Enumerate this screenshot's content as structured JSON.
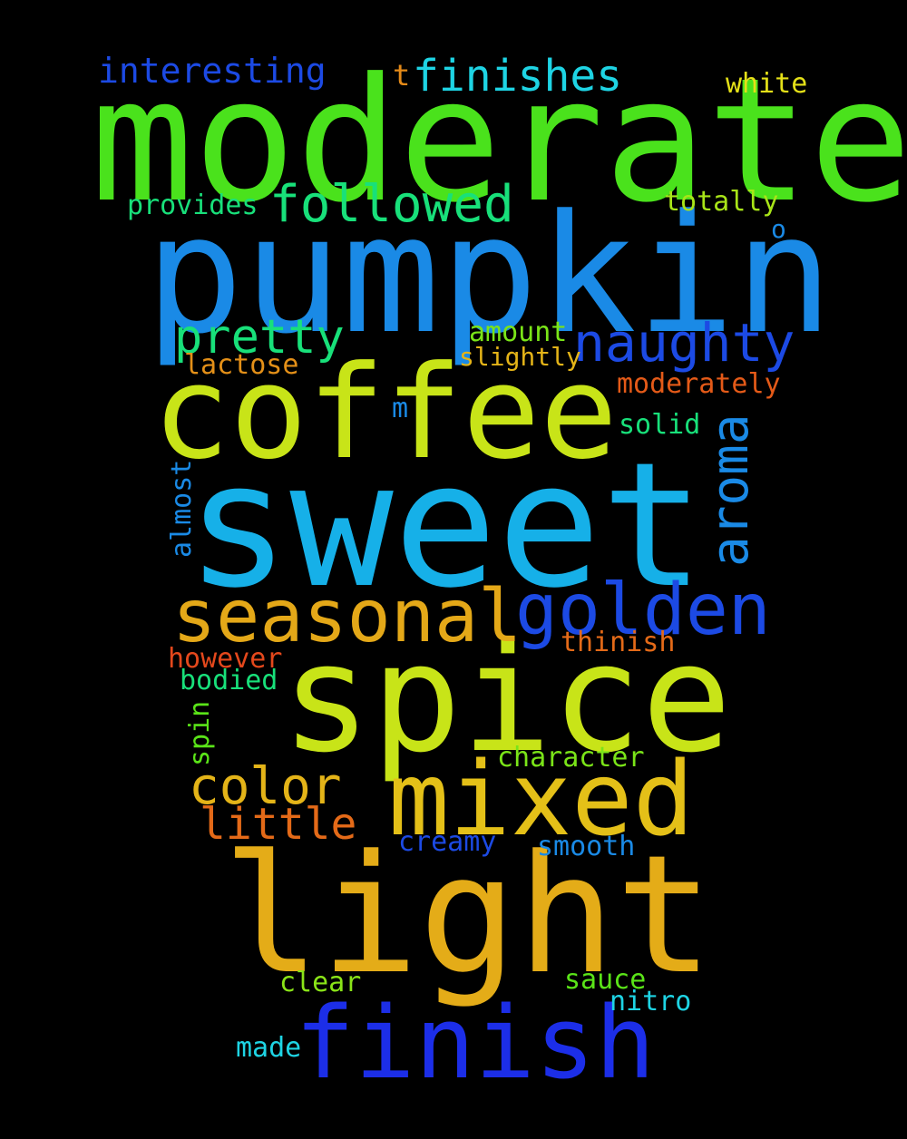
{
  "words": [
    {
      "key": "moderate",
      "text": "moderate",
      "color": "#4ae21c"
    },
    {
      "key": "pumpkin",
      "text": "pumpkin",
      "color": "#1a8ae6"
    },
    {
      "key": "sweet",
      "text": "sweet",
      "color": "#16b0e8"
    },
    {
      "key": "coffee",
      "text": "coffee",
      "color": "#c8e418"
    },
    {
      "key": "spice",
      "text": "spice",
      "color": "#c8e418"
    },
    {
      "key": "light",
      "text": "light",
      "color": "#e4ac18"
    },
    {
      "key": "finish",
      "text": "finish",
      "color": "#1c2ee8"
    },
    {
      "key": "mixed",
      "text": "mixed",
      "color": "#e4c018"
    },
    {
      "key": "seasonal",
      "text": "seasonal",
      "color": "#e4a818"
    },
    {
      "key": "golden",
      "text": "golden",
      "color": "#1c4ae4"
    },
    {
      "key": "naughty",
      "text": "naughty",
      "color": "#1c4ae4"
    },
    {
      "key": "aroma",
      "text": "aroma",
      "color": "#1a8ae6"
    },
    {
      "key": "followed",
      "text": "followed",
      "color": "#18e07a"
    },
    {
      "key": "pretty",
      "text": "pretty",
      "color": "#18e07a"
    },
    {
      "key": "finishes",
      "text": "finishes",
      "color": "#1ed4e4"
    },
    {
      "key": "color",
      "text": "color",
      "color": "#e4b418"
    },
    {
      "key": "little",
      "text": "little",
      "color": "#e46a18"
    },
    {
      "key": "interesting",
      "text": "interesting",
      "color": "#1c4ae4"
    },
    {
      "key": "white",
      "text": "white",
      "color": "#e4e018"
    },
    {
      "key": "t",
      "text": "t",
      "color": "#e48a18"
    },
    {
      "key": "totally",
      "text": "totally",
      "color": "#a8e418"
    },
    {
      "key": "provides",
      "text": "provides",
      "color": "#18e07a"
    },
    {
      "key": "o",
      "text": "o",
      "color": "#1a8ae6"
    },
    {
      "key": "amount",
      "text": "amount",
      "color": "#7ae418"
    },
    {
      "key": "slightly",
      "text": "slightly",
      "color": "#e4b418"
    },
    {
      "key": "lactose",
      "text": "lactose",
      "color": "#e49018"
    },
    {
      "key": "moderately",
      "text": "moderately",
      "color": "#e45a18"
    },
    {
      "key": "m",
      "text": "m",
      "color": "#1a8ae6"
    },
    {
      "key": "solid",
      "text": "solid",
      "color": "#18e07a"
    },
    {
      "key": "almost",
      "text": "almost",
      "color": "#1a8ae6"
    },
    {
      "key": "thinish",
      "text": "thinish",
      "color": "#e46a18"
    },
    {
      "key": "however",
      "text": "however",
      "color": "#e4481c"
    },
    {
      "key": "bodied",
      "text": "bodied",
      "color": "#18e07a"
    },
    {
      "key": "spin",
      "text": "spin",
      "color": "#5ae418"
    },
    {
      "key": "character",
      "text": "character",
      "color": "#7ae418"
    },
    {
      "key": "creamy",
      "text": "creamy",
      "color": "#1c4ae4"
    },
    {
      "key": "smooth",
      "text": "smooth",
      "color": "#1a8ae6"
    },
    {
      "key": "clear",
      "text": "clear",
      "color": "#8ae418"
    },
    {
      "key": "sauce",
      "text": "sauce",
      "color": "#5ae418"
    },
    {
      "key": "nitro",
      "text": "nitro",
      "color": "#1ed4e4"
    },
    {
      "key": "made",
      "text": "made",
      "color": "#1ed4e4"
    }
  ],
  "background": "#000000"
}
